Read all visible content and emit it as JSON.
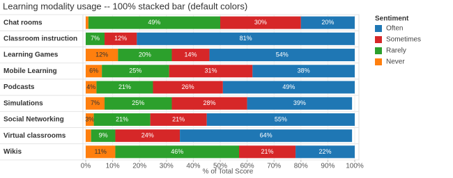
{
  "chart_data": {
    "type": "stacked-bar-horizontal",
    "title": "Learning modality usage -- 100% stacked bar (default colors)",
    "x_label": "% of Total Score",
    "legend_title": "Sentiment",
    "legend_position": "right",
    "grid": true,
    "categories": [
      "Chat rooms",
      "Classroom instruction",
      "Learning Games",
      "Mobile Learning",
      "Podcasts",
      "Simulations",
      "Social Networking",
      "Virtual classrooms",
      "Wikis"
    ],
    "series": [
      {
        "name": "Never",
        "color": "#ff7f0e",
        "values": [
          1,
          0,
          12,
          6,
          4,
          7,
          3,
          2,
          11
        ],
        "value_labels": [
          null,
          null,
          "12%",
          "6%",
          "4%",
          "7%",
          "3%",
          null,
          "11%"
        ]
      },
      {
        "name": "Rarely",
        "color": "#2ca02c",
        "values": [
          49,
          7,
          20,
          25,
          21,
          25,
          21,
          9,
          46
        ],
        "value_labels": [
          "49%",
          "7%",
          "20%",
          "25%",
          "21%",
          "25%",
          "21%",
          "9%",
          "46%"
        ]
      },
      {
        "name": "Sometimes",
        "color": "#d62728",
        "values": [
          30,
          12,
          14,
          31,
          26,
          28,
          21,
          24,
          21
        ],
        "value_labels": [
          "30%",
          "12%",
          "14%",
          "31%",
          "26%",
          "28%",
          "21%",
          "24%",
          "21%"
        ]
      },
      {
        "name": "Often",
        "color": "#1f77b4",
        "values": [
          20,
          81,
          54,
          38,
          49,
          39,
          55,
          64,
          22
        ],
        "value_labels": [
          "20%",
          "81%",
          "54%",
          "38%",
          "49%",
          "39%",
          "55%",
          "64%",
          "22%"
        ]
      }
    ],
    "legend_order": [
      3,
      2,
      1,
      0
    ],
    "xlim": [
      0,
      100
    ],
    "xticks": [
      {
        "value": 0,
        "label": "0%"
      },
      {
        "value": 10,
        "label": "10%"
      },
      {
        "value": 20,
        "label": "20%"
      },
      {
        "value": 30,
        "label": "30%"
      },
      {
        "value": 40,
        "label": "40%"
      },
      {
        "value": 50,
        "label": "50%"
      },
      {
        "value": 60,
        "label": "60%"
      },
      {
        "value": 70,
        "label": "70%"
      },
      {
        "value": 80,
        "label": "80%"
      },
      {
        "value": 90,
        "label": "90%"
      },
      {
        "value": 100,
        "label": "100%"
      }
    ]
  }
}
